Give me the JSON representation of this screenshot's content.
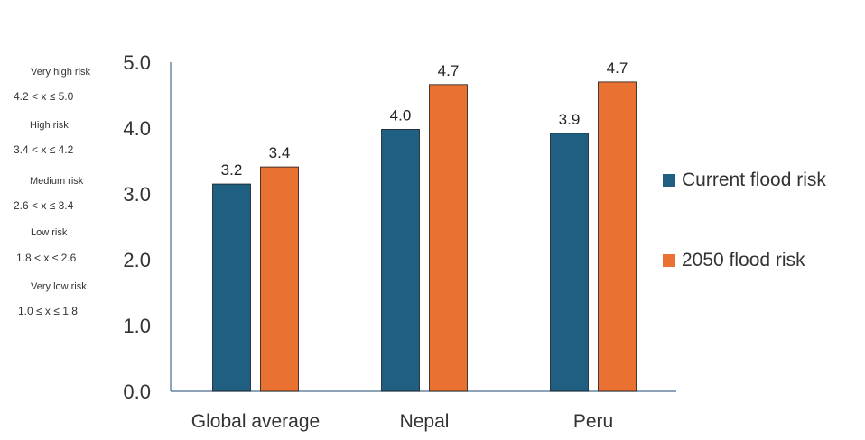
{
  "risk_key": [
    {
      "name": "Very high risk",
      "range": "4.2 < x ≤ 5.0"
    },
    {
      "name": "High risk",
      "range": "3.4 < x ≤ 4.2"
    },
    {
      "name": "Medium risk",
      "range": "2.6 < x ≤ 3.4"
    },
    {
      "name": "Low risk",
      "range": "1.8 < x ≤ 2.6"
    },
    {
      "name": "Very low risk",
      "range": "1.0 ≤ x ≤ 1.8"
    }
  ],
  "chart_data": {
    "type": "bar",
    "title": "",
    "xlabel": "",
    "ylabel": "",
    "categories": [
      "Global average",
      "Nepal",
      "Peru"
    ],
    "series": [
      {
        "name": "Current flood risk",
        "values": [
          3.2,
          4.0,
          3.9
        ],
        "color": "#1f5f82"
      },
      {
        "name": "2050 flood risk",
        "values": [
          3.4,
          4.7,
          4.7
        ],
        "color": "#e97132"
      }
    ],
    "display_values": [
      [
        3.15,
        3.98,
        3.92
      ],
      [
        3.41,
        4.66,
        4.7
      ]
    ],
    "ylim": [
      0,
      5
    ],
    "yticks": [
      "0.0",
      "1.0",
      "2.0",
      "3.0",
      "4.0",
      "5.0"
    ],
    "grid": false,
    "legend_position": "right"
  }
}
